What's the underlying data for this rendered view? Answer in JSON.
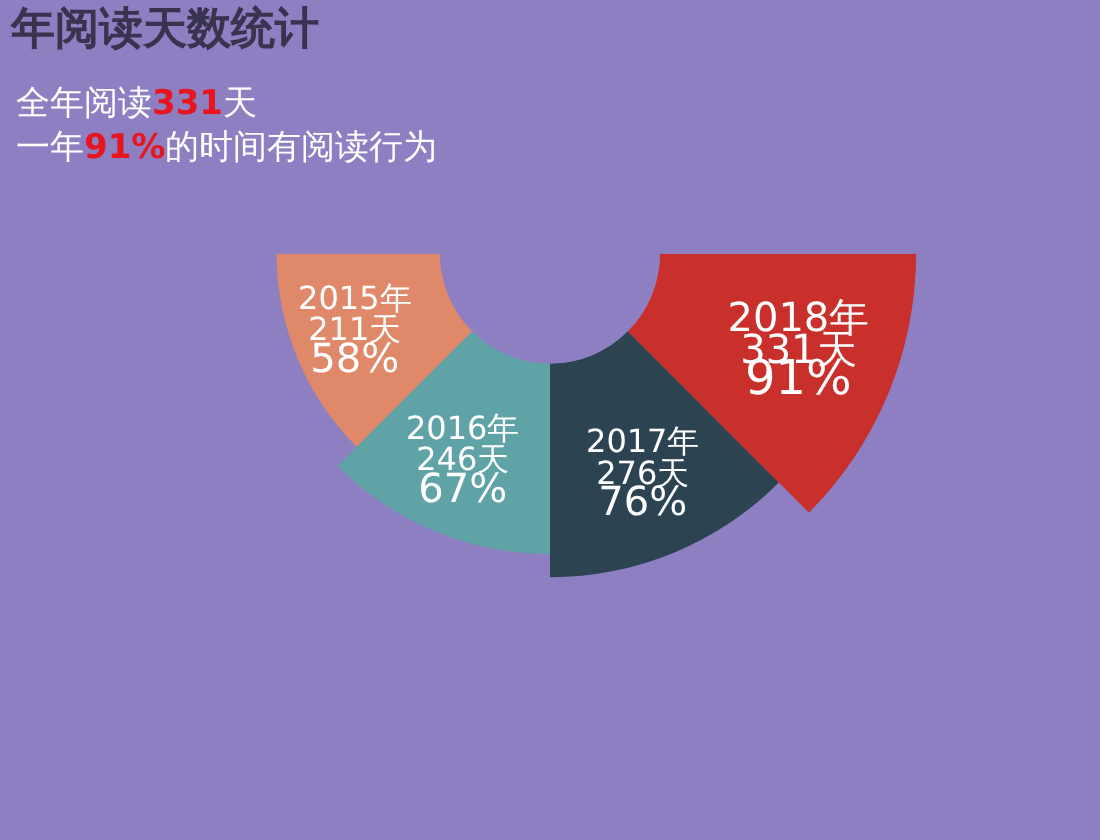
{
  "chart_data": {
    "type": "other",
    "title": "年阅读天数统计",
    "subtitle": "全年阅读331天",
    "annotations": [
      "一年91%的时间有阅读行为"
    ],
    "categories": [
      "2015年",
      "2016年",
      "2017年",
      "2018年"
    ],
    "values": [
      211,
      246,
      276,
      331
    ],
    "value_labels": [
      "211天\n58%",
      "246天\n67%",
      "276天\n76%",
      "331天\n91%"
    ],
    "colors": [
      "#e0886a",
      "#5fa3a6",
      "#2c4352",
      "#c9302c"
    ]
  }
}
